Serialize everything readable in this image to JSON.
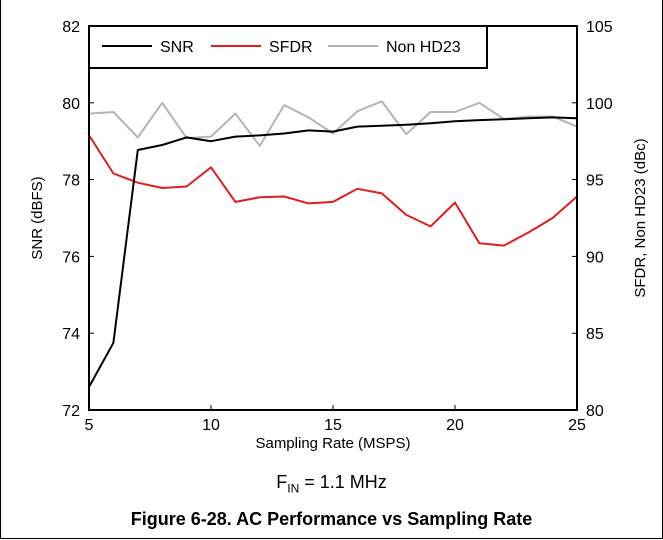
{
  "chart_data": {
    "type": "line",
    "title": "",
    "xlabel": "Sampling Rate (MSPS)",
    "ylabel_left": "SNR (dBFS)",
    "ylabel_right": "SFDR, Non HD23 (dBc)",
    "xlim": [
      5,
      25
    ],
    "ylim_left": [
      72,
      82
    ],
    "ylim_right": [
      80,
      105
    ],
    "xticks": [
      "5",
      "10",
      "15",
      "20",
      "25"
    ],
    "yticks_left": [
      "72",
      "74",
      "76",
      "78",
      "80",
      "82"
    ],
    "yticks_right": [
      "80",
      "85",
      "90",
      "95",
      "100",
      "105"
    ],
    "grid": false,
    "legend": "top-left",
    "series": [
      {
        "name": "SNR",
        "axis": "left",
        "color": "#000000",
        "x": [
          5,
          6,
          7,
          8,
          9,
          10,
          11,
          12,
          13,
          14,
          15,
          16,
          17,
          18,
          19,
          20,
          21,
          22,
          23,
          24,
          25
        ],
        "values": [
          72.6,
          73.75,
          78.77,
          78.9,
          79.1,
          79.0,
          79.12,
          79.15,
          79.2,
          79.28,
          79.25,
          79.38,
          79.4,
          79.43,
          79.47,
          79.52,
          79.55,
          79.57,
          79.6,
          79.62,
          79.6
        ]
      },
      {
        "name": "SFDR",
        "axis": "right",
        "color": "#e01e1e",
        "x": [
          5,
          6,
          7,
          8,
          9,
          10,
          11,
          12,
          13,
          14,
          15,
          16,
          17,
          18,
          19,
          20,
          21,
          22,
          23,
          24,
          25
        ],
        "values": [
          97.9,
          95.4,
          94.8,
          94.45,
          94.55,
          95.8,
          93.55,
          93.85,
          93.9,
          93.45,
          93.55,
          94.4,
          94.1,
          92.7,
          91.95,
          93.5,
          90.85,
          90.7,
          91.55,
          92.5,
          93.9
        ]
      },
      {
        "name": "Non HD23",
        "axis": "right",
        "color": "#b4b4b4",
        "x": [
          5,
          6,
          7,
          8,
          9,
          10,
          11,
          12,
          13,
          14,
          15,
          16,
          17,
          18,
          19,
          20,
          21,
          22,
          23,
          24,
          25
        ],
        "values": [
          99.3,
          99.4,
          97.75,
          100.0,
          97.7,
          97.8,
          99.3,
          97.2,
          99.85,
          99.05,
          98.0,
          99.45,
          100.1,
          97.95,
          99.4,
          99.4,
          100.0,
          98.95,
          99.1,
          99.1,
          98.45
        ]
      }
    ],
    "condition": {
      "prefix": "F",
      "subscript": "IN",
      "text": " = 1.1 MHz"
    },
    "caption": "Figure 6-28. AC Performance vs Sampling Rate"
  }
}
